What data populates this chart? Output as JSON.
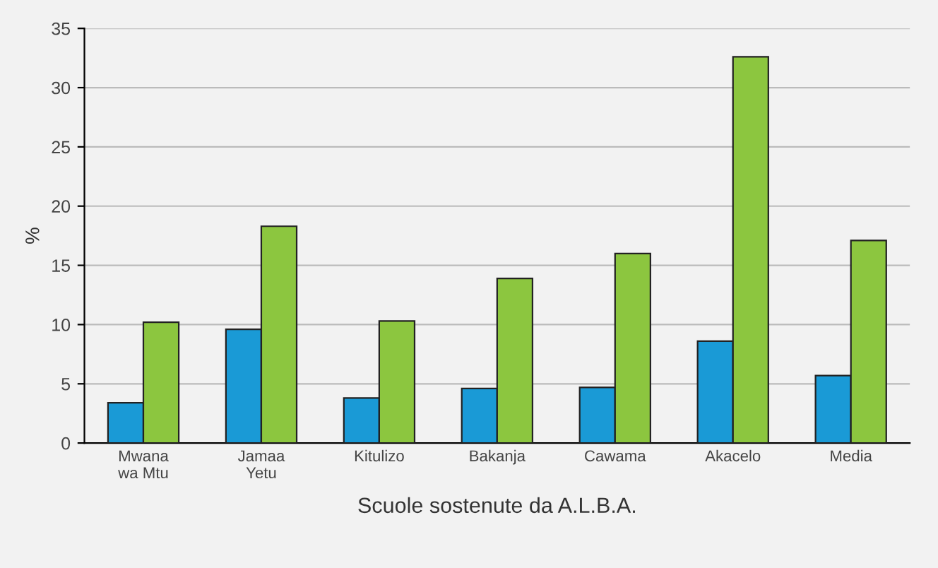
{
  "chart_data": {
    "type": "bar",
    "xlabel": "Scuole sostenute da A.L.B.A.",
    "ylabel": "%",
    "categories": [
      "Mwana\nwa Mtu",
      "Jamaa\nYetu",
      "Kitulizo",
      "Bakanja",
      "Cawama",
      "Akacelo",
      "Media"
    ],
    "series": [
      {
        "color": "#1a9ad6",
        "values": [
          3.4,
          9.6,
          3.8,
          4.6,
          4.7,
          8.6,
          5.7
        ]
      },
      {
        "color": "#8cc63f",
        "values": [
          10.2,
          18.3,
          10.3,
          13.9,
          16.0,
          32.6,
          17.1
        ]
      }
    ],
    "ylim": [
      0,
      35
    ],
    "yticks": [
      0,
      5,
      10,
      15,
      20,
      25,
      30,
      35
    ],
    "grid": "y",
    "legend": false
  }
}
